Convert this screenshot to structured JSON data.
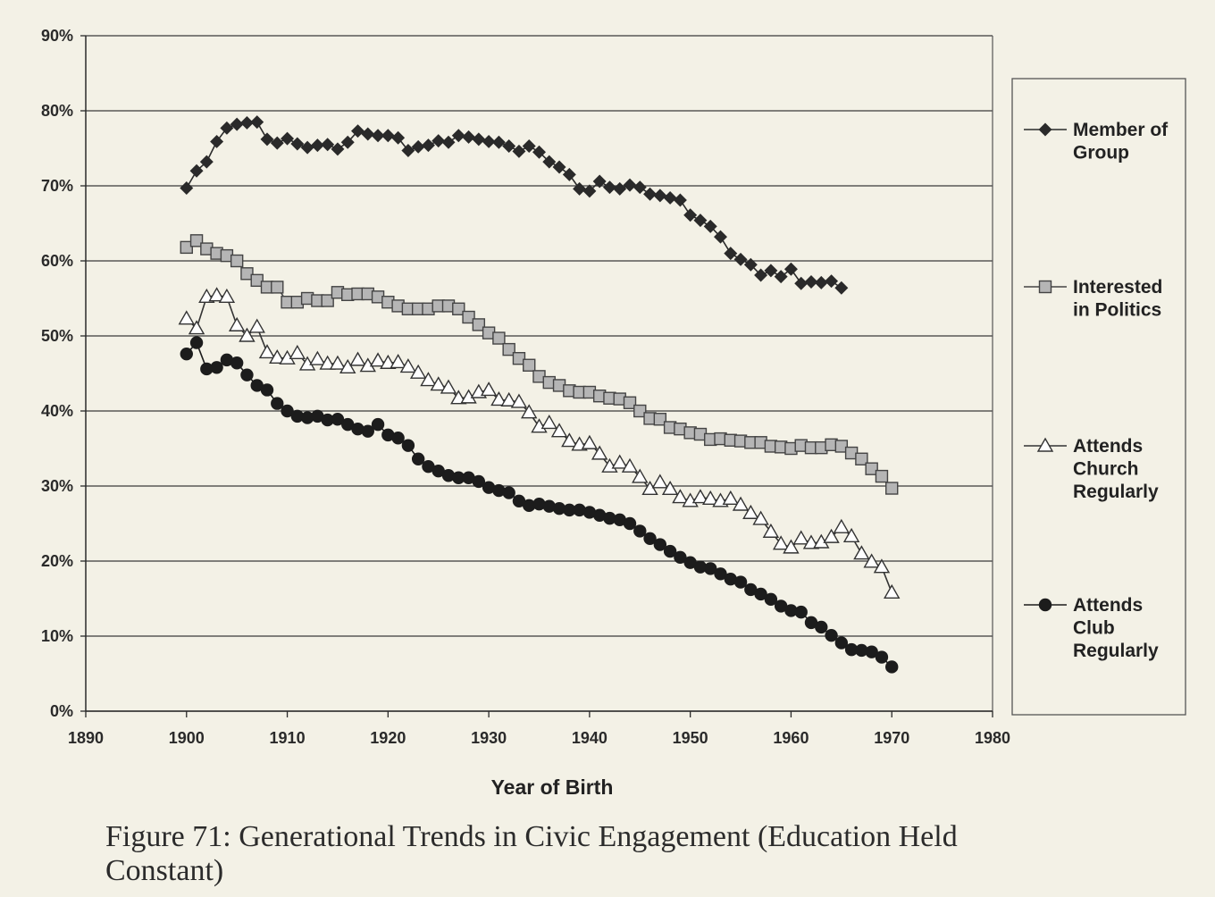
{
  "caption": "Figure 71: Generational Trends in Civic Engagement (Education Held Constant)",
  "chart_data": {
    "type": "line",
    "title": "",
    "xlabel": "Year of Birth",
    "ylabel": "",
    "xlim": [
      1890,
      1980
    ],
    "ylim": [
      0,
      90
    ],
    "x_ticks": [
      1890,
      1900,
      1910,
      1920,
      1930,
      1940,
      1950,
      1960,
      1970,
      1980
    ],
    "x_tick_labels": [
      "1890",
      "1900",
      "1910",
      "1920",
      "1930",
      "1940",
      "1950",
      "1960",
      "1970",
      "1980"
    ],
    "y_ticks": [
      0,
      10,
      20,
      30,
      40,
      50,
      60,
      70,
      80,
      90
    ],
    "y_tick_labels": [
      "0%",
      "10%",
      "20%",
      "30%",
      "40%",
      "50%",
      "60%",
      "70%",
      "80%",
      "90%"
    ],
    "grid": "horizontal",
    "legend_position": "right",
    "series": [
      {
        "name": "Member of Group",
        "legend_lines": [
          "Member of",
          "Group"
        ],
        "marker": "diamond",
        "color": "#2a2a2a",
        "marker_fill": "#2a2a2a",
        "x_start": 1900,
        "values": [
          69.7,
          72.0,
          73.2,
          75.9,
          77.7,
          78.2,
          78.4,
          78.5,
          76.2,
          75.7,
          76.3,
          75.6,
          75.1,
          75.4,
          75.5,
          74.9,
          75.8,
          77.3,
          76.9,
          76.7,
          76.7,
          76.4,
          74.7,
          75.2,
          75.4,
          76.0,
          75.8,
          76.7,
          76.5,
          76.2,
          75.9,
          75.8,
          75.3,
          74.6,
          75.3,
          74.5,
          73.2,
          72.5,
          71.5,
          69.6,
          69.3,
          70.6,
          69.8,
          69.6,
          70.1,
          69.8,
          68.9,
          68.7,
          68.4,
          68.1,
          66.1,
          65.4,
          64.6,
          63.2,
          61.0,
          60.2,
          59.5,
          58.1,
          58.7,
          57.9,
          58.9,
          57.0,
          57.2,
          57.1,
          57.3,
          56.4
        ]
      },
      {
        "name": "Interested in Politics",
        "legend_lines": [
          "Interested",
          "in Politics"
        ],
        "marker": "square",
        "color": "#444444",
        "marker_fill": "#b5b5b5",
        "x_start": 1900,
        "values": [
          61.8,
          62.7,
          61.6,
          61.0,
          60.7,
          60.0,
          58.3,
          57.4,
          56.5,
          56.5,
          54.5,
          54.5,
          55.0,
          54.7,
          54.7,
          55.8,
          55.5,
          55.6,
          55.6,
          55.2,
          54.5,
          54.0,
          53.6,
          53.6,
          53.6,
          54.0,
          54.0,
          53.6,
          52.5,
          51.5,
          50.4,
          49.7,
          48.2,
          47.0,
          46.1,
          44.6,
          43.8,
          43.4,
          42.7,
          42.5,
          42.5,
          42.0,
          41.7,
          41.6,
          41.1,
          40.0,
          39.0,
          38.9,
          37.8,
          37.6,
          37.1,
          36.9,
          36.2,
          36.3,
          36.1,
          36.0,
          35.8,
          35.8,
          35.3,
          35.2,
          35.0,
          35.4,
          35.1,
          35.1,
          35.5,
          35.3,
          34.4,
          33.6,
          32.3,
          31.3,
          29.7
        ]
      },
      {
        "name": "Attends Church Regularly",
        "legend_lines": [
          "Attends",
          "Church",
          "Regularly"
        ],
        "marker": "triangle",
        "color": "#333333",
        "marker_fill": "#ffffff",
        "x_start": 1900,
        "values": [
          52.3,
          51.0,
          55.2,
          55.4,
          55.2,
          51.4,
          50.0,
          51.2,
          47.8,
          47.1,
          47.0,
          47.7,
          46.2,
          46.9,
          46.3,
          46.3,
          45.8,
          46.8,
          46.0,
          46.7,
          46.4,
          46.5,
          45.9,
          45.1,
          44.1,
          43.5,
          43.1,
          41.7,
          41.8,
          42.5,
          42.8,
          41.5,
          41.4,
          41.2,
          39.8,
          37.9,
          38.4,
          37.3,
          36.0,
          35.5,
          35.7,
          34.3,
          32.6,
          33.1,
          32.6,
          31.2,
          29.6,
          30.5,
          29.6,
          28.5,
          28.0,
          28.5,
          28.3,
          28.0,
          28.3,
          27.5,
          26.4,
          25.6,
          23.9,
          22.3,
          21.8,
          23.0,
          22.4,
          22.5,
          23.2,
          24.5,
          23.3,
          21.0,
          19.9,
          19.2,
          15.8
        ]
      },
      {
        "name": "Attends Club Regularly",
        "legend_lines": [
          "Attends",
          "Club",
          "Regularly"
        ],
        "marker": "circle",
        "color": "#1c1c1c",
        "marker_fill": "#1c1c1c",
        "x_start": 1900,
        "values": [
          47.6,
          49.1,
          45.6,
          45.8,
          46.8,
          46.4,
          44.8,
          43.4,
          42.8,
          41.0,
          40.0,
          39.3,
          39.1,
          39.3,
          38.8,
          38.9,
          38.2,
          37.6,
          37.3,
          38.2,
          36.8,
          36.4,
          35.4,
          33.6,
          32.6,
          32.0,
          31.4,
          31.1,
          31.1,
          30.6,
          29.8,
          29.4,
          29.1,
          28.0,
          27.4,
          27.6,
          27.3,
          27.0,
          26.8,
          26.8,
          26.5,
          26.1,
          25.7,
          25.5,
          25.0,
          24.0,
          23.0,
          22.2,
          21.3,
          20.5,
          19.8,
          19.2,
          19.0,
          18.3,
          17.6,
          17.2,
          16.2,
          15.6,
          14.9,
          14.0,
          13.4,
          13.2,
          11.8,
          11.2,
          10.1,
          9.1,
          8.2,
          8.1,
          7.9,
          7.2,
          5.9
        ]
      }
    ]
  }
}
